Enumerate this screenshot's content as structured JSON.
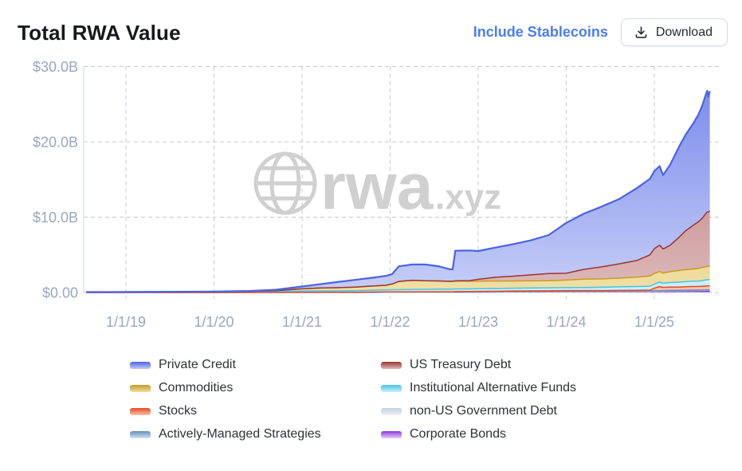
{
  "header": {
    "title": "Total RWA Value",
    "include_stablecoins_label": "Include Stablecoins",
    "download_label": "Download"
  },
  "watermark": {
    "icon": "globe-icon",
    "text": "rwa",
    "suffix": ".xyz",
    "color": "#d0d0d0"
  },
  "chart_data": {
    "type": "area",
    "stacked": true,
    "title": "Total RWA Value",
    "grid": true,
    "legend_position": "bottom",
    "x_unit": "decimal_year",
    "y_unit": "USD billions",
    "x_axis": {
      "ticks": [
        {
          "label": "1/1/19",
          "year": 2019
        },
        {
          "label": "1/1/20",
          "year": 2020
        },
        {
          "label": "1/1/21",
          "year": 2021
        },
        {
          "label": "1/1/22",
          "year": 2022
        },
        {
          "label": "1/1/23",
          "year": 2023
        },
        {
          "label": "1/1/24",
          "year": 2024
        },
        {
          "label": "1/1/25",
          "year": 2025
        }
      ],
      "range": [
        2018.52,
        2025.76
      ]
    },
    "y_axis": {
      "ticks": [
        {
          "label": "$0.00",
          "value": 0
        },
        {
          "label": "$10.0B",
          "value": 10
        },
        {
          "label": "$20.0B",
          "value": 20
        },
        {
          "label": "$30.0B",
          "value": 30
        }
      ],
      "range": [
        0,
        30
      ]
    },
    "x": [
      2018.55,
      2019.0,
      2019.5,
      2020.0,
      2020.4,
      2020.7,
      2021.0,
      2021.2,
      2021.4,
      2021.6,
      2021.8,
      2021.95,
      2022.02,
      2022.1,
      2022.25,
      2022.4,
      2022.55,
      2022.68,
      2022.71,
      2022.74,
      2022.9,
      2023.0,
      2023.2,
      2023.4,
      2023.6,
      2023.8,
      2024.0,
      2024.2,
      2024.4,
      2024.6,
      2024.8,
      2024.95,
      2025.0,
      2025.06,
      2025.1,
      2025.18,
      2025.28,
      2025.36,
      2025.44,
      2025.5,
      2025.54,
      2025.58,
      2025.6,
      2025.615,
      2025.63
    ],
    "series": [
      {
        "name": "Corporate Bonds",
        "line_color": "#8c33d6",
        "fill_top": "#bb8cea",
        "fill_bottom": "#e2d0f6",
        "values": [
          0,
          0,
          0,
          0,
          0,
          0,
          0.01,
          0.01,
          0.01,
          0.01,
          0.01,
          0.02,
          0.02,
          0.02,
          0.02,
          0.02,
          0.03,
          0.03,
          0.03,
          0.03,
          0.04,
          0.05,
          0.06,
          0.08,
          0.08,
          0.09,
          0.1,
          0.1,
          0.1,
          0.11,
          0.11,
          0.12,
          0.12,
          0.12,
          0.12,
          0.12,
          0.13,
          0.13,
          0.13,
          0.13,
          0.13,
          0.14,
          0.14,
          0.14,
          0.14
        ]
      },
      {
        "name": "non-US Government Debt",
        "line_color": "#c2cfe2",
        "fill_top": "#dae4f0",
        "fill_bottom": "#eef3f9",
        "values": [
          0,
          0,
          0,
          0,
          0,
          0,
          0,
          0,
          0,
          0,
          0.01,
          0.01,
          0.01,
          0.01,
          0.01,
          0.01,
          0.01,
          0.01,
          0.01,
          0.02,
          0.02,
          0.02,
          0.02,
          0.03,
          0.03,
          0.03,
          0.04,
          0.04,
          0.04,
          0.04,
          0.05,
          0.05,
          0.05,
          0.06,
          0.06,
          0.1,
          0.11,
          0.12,
          0.13,
          0.13,
          0.14,
          0.14,
          0.15,
          0.15,
          0.15
        ]
      },
      {
        "name": "Actively-Managed Strategies",
        "line_color": "#5f8fba",
        "fill_top": "#9dc2da",
        "fill_bottom": "#d2e4f0",
        "values": [
          0,
          0,
          0,
          0,
          0.01,
          0.01,
          0.02,
          0.02,
          0.02,
          0.02,
          0.02,
          0.02,
          0.02,
          0.02,
          0.03,
          0.03,
          0.03,
          0.03,
          0.03,
          0.03,
          0.03,
          0.03,
          0.03,
          0.04,
          0.04,
          0.04,
          0.04,
          0.04,
          0.04,
          0.05,
          0.05,
          0.05,
          0.05,
          0.05,
          0.05,
          0.05,
          0.06,
          0.06,
          0.06,
          0.06,
          0.06,
          0.06,
          0.06,
          0.06,
          0.06
        ]
      },
      {
        "name": "Stocks",
        "line_color": "#e64a1e",
        "fill_top": "#f08258",
        "fill_bottom": "#f8c4ac",
        "values": [
          0,
          0,
          0,
          0,
          0,
          0,
          0.01,
          0.01,
          0.01,
          0.01,
          0.02,
          0.02,
          0.02,
          0.02,
          0.03,
          0.03,
          0.03,
          0.03,
          0.03,
          0.04,
          0.04,
          0.05,
          0.05,
          0.05,
          0.06,
          0.06,
          0.07,
          0.07,
          0.07,
          0.08,
          0.08,
          0.1,
          0.35,
          0.55,
          0.45,
          0.45,
          0.42,
          0.45,
          0.47,
          0.48,
          0.5,
          0.52,
          0.53,
          0.53,
          0.55
        ]
      },
      {
        "name": "Institutional Alternative Funds",
        "line_color": "#45c4e8",
        "fill_top": "#8fdcf2",
        "fill_bottom": "#cfeffa",
        "values": [
          0.05,
          0.07,
          0.08,
          0.1,
          0.12,
          0.13,
          0.15,
          0.17,
          0.18,
          0.2,
          0.25,
          0.28,
          0.3,
          0.3,
          0.32,
          0.32,
          0.33,
          0.33,
          0.33,
          0.35,
          0.35,
          0.35,
          0.36,
          0.37,
          0.38,
          0.4,
          0.4,
          0.42,
          0.45,
          0.47,
          0.5,
          0.52,
          0.55,
          0.6,
          0.55,
          0.6,
          0.65,
          0.68,
          0.7,
          0.72,
          0.75,
          0.8,
          0.82,
          0.83,
          0.85
        ]
      },
      {
        "name": "Commodities",
        "line_color": "#c79b1f",
        "fill_top": "#debe54",
        "fill_bottom": "#f0dfa4",
        "values": [
          0,
          0,
          0,
          0,
          0.02,
          0.1,
          0.3,
          0.38,
          0.42,
          0.48,
          0.55,
          0.6,
          0.75,
          1.1,
          1.2,
          1.15,
          1.1,
          1.05,
          1.05,
          1.05,
          1.0,
          1.0,
          1.0,
          0.95,
          0.95,
          0.95,
          1.0,
          1.1,
          1.1,
          1.15,
          1.25,
          1.35,
          1.4,
          1.4,
          1.35,
          1.45,
          1.55,
          1.6,
          1.62,
          1.68,
          1.72,
          1.75,
          1.78,
          1.78,
          1.8
        ]
      },
      {
        "name": "US Treasury Debt",
        "line_color": "#9a3434",
        "fill_top": "#b46868",
        "fill_bottom": "#ddbaba",
        "values": [
          0,
          0,
          0,
          0,
          0,
          0,
          0,
          0,
          0,
          0,
          0,
          0,
          0,
          0,
          0,
          0,
          0,
          0,
          0,
          0.03,
          0.1,
          0.25,
          0.5,
          0.65,
          0.8,
          0.95,
          0.9,
          1.3,
          1.6,
          1.9,
          2.2,
          2.8,
          3.3,
          3.5,
          3.2,
          3.5,
          4.4,
          5.2,
          5.8,
          6.2,
          6.5,
          7.0,
          7.2,
          7.2,
          7.3
        ]
      },
      {
        "name": "Private Credit",
        "line_color": "#4a63e6",
        "fill_top": "#7486ea",
        "fill_bottom": "#c6cef7",
        "values": [
          0,
          0,
          0.01,
          0.02,
          0.05,
          0.12,
          0.3,
          0.5,
          0.75,
          0.95,
          1.1,
          1.25,
          1.3,
          2.0,
          2.1,
          2.15,
          1.95,
          1.6,
          1.6,
          4.0,
          4.0,
          3.75,
          3.95,
          4.25,
          4.6,
          5.1,
          6.7,
          7.4,
          8.0,
          8.6,
          9.6,
          10.1,
          10.3,
          10.5,
          9.8,
          10.7,
          12.0,
          12.8,
          13.5,
          14.2,
          14.9,
          15.7,
          16.1,
          15.3,
          15.9
        ]
      }
    ],
    "legend_pairs": [
      [
        "Private Credit",
        "US Treasury Debt"
      ],
      [
        "Commodities",
        "Institutional Alternative Funds"
      ],
      [
        "Stocks",
        "non-US Government Debt"
      ],
      [
        "Actively-Managed Strategies",
        "Corporate Bonds"
      ]
    ]
  },
  "style_colors": {
    "axis_label": "#9aa6c4",
    "gridline": "#c3c8d4",
    "plot_border": "#dbe0f0",
    "link_blue": "#4b7cf3"
  }
}
